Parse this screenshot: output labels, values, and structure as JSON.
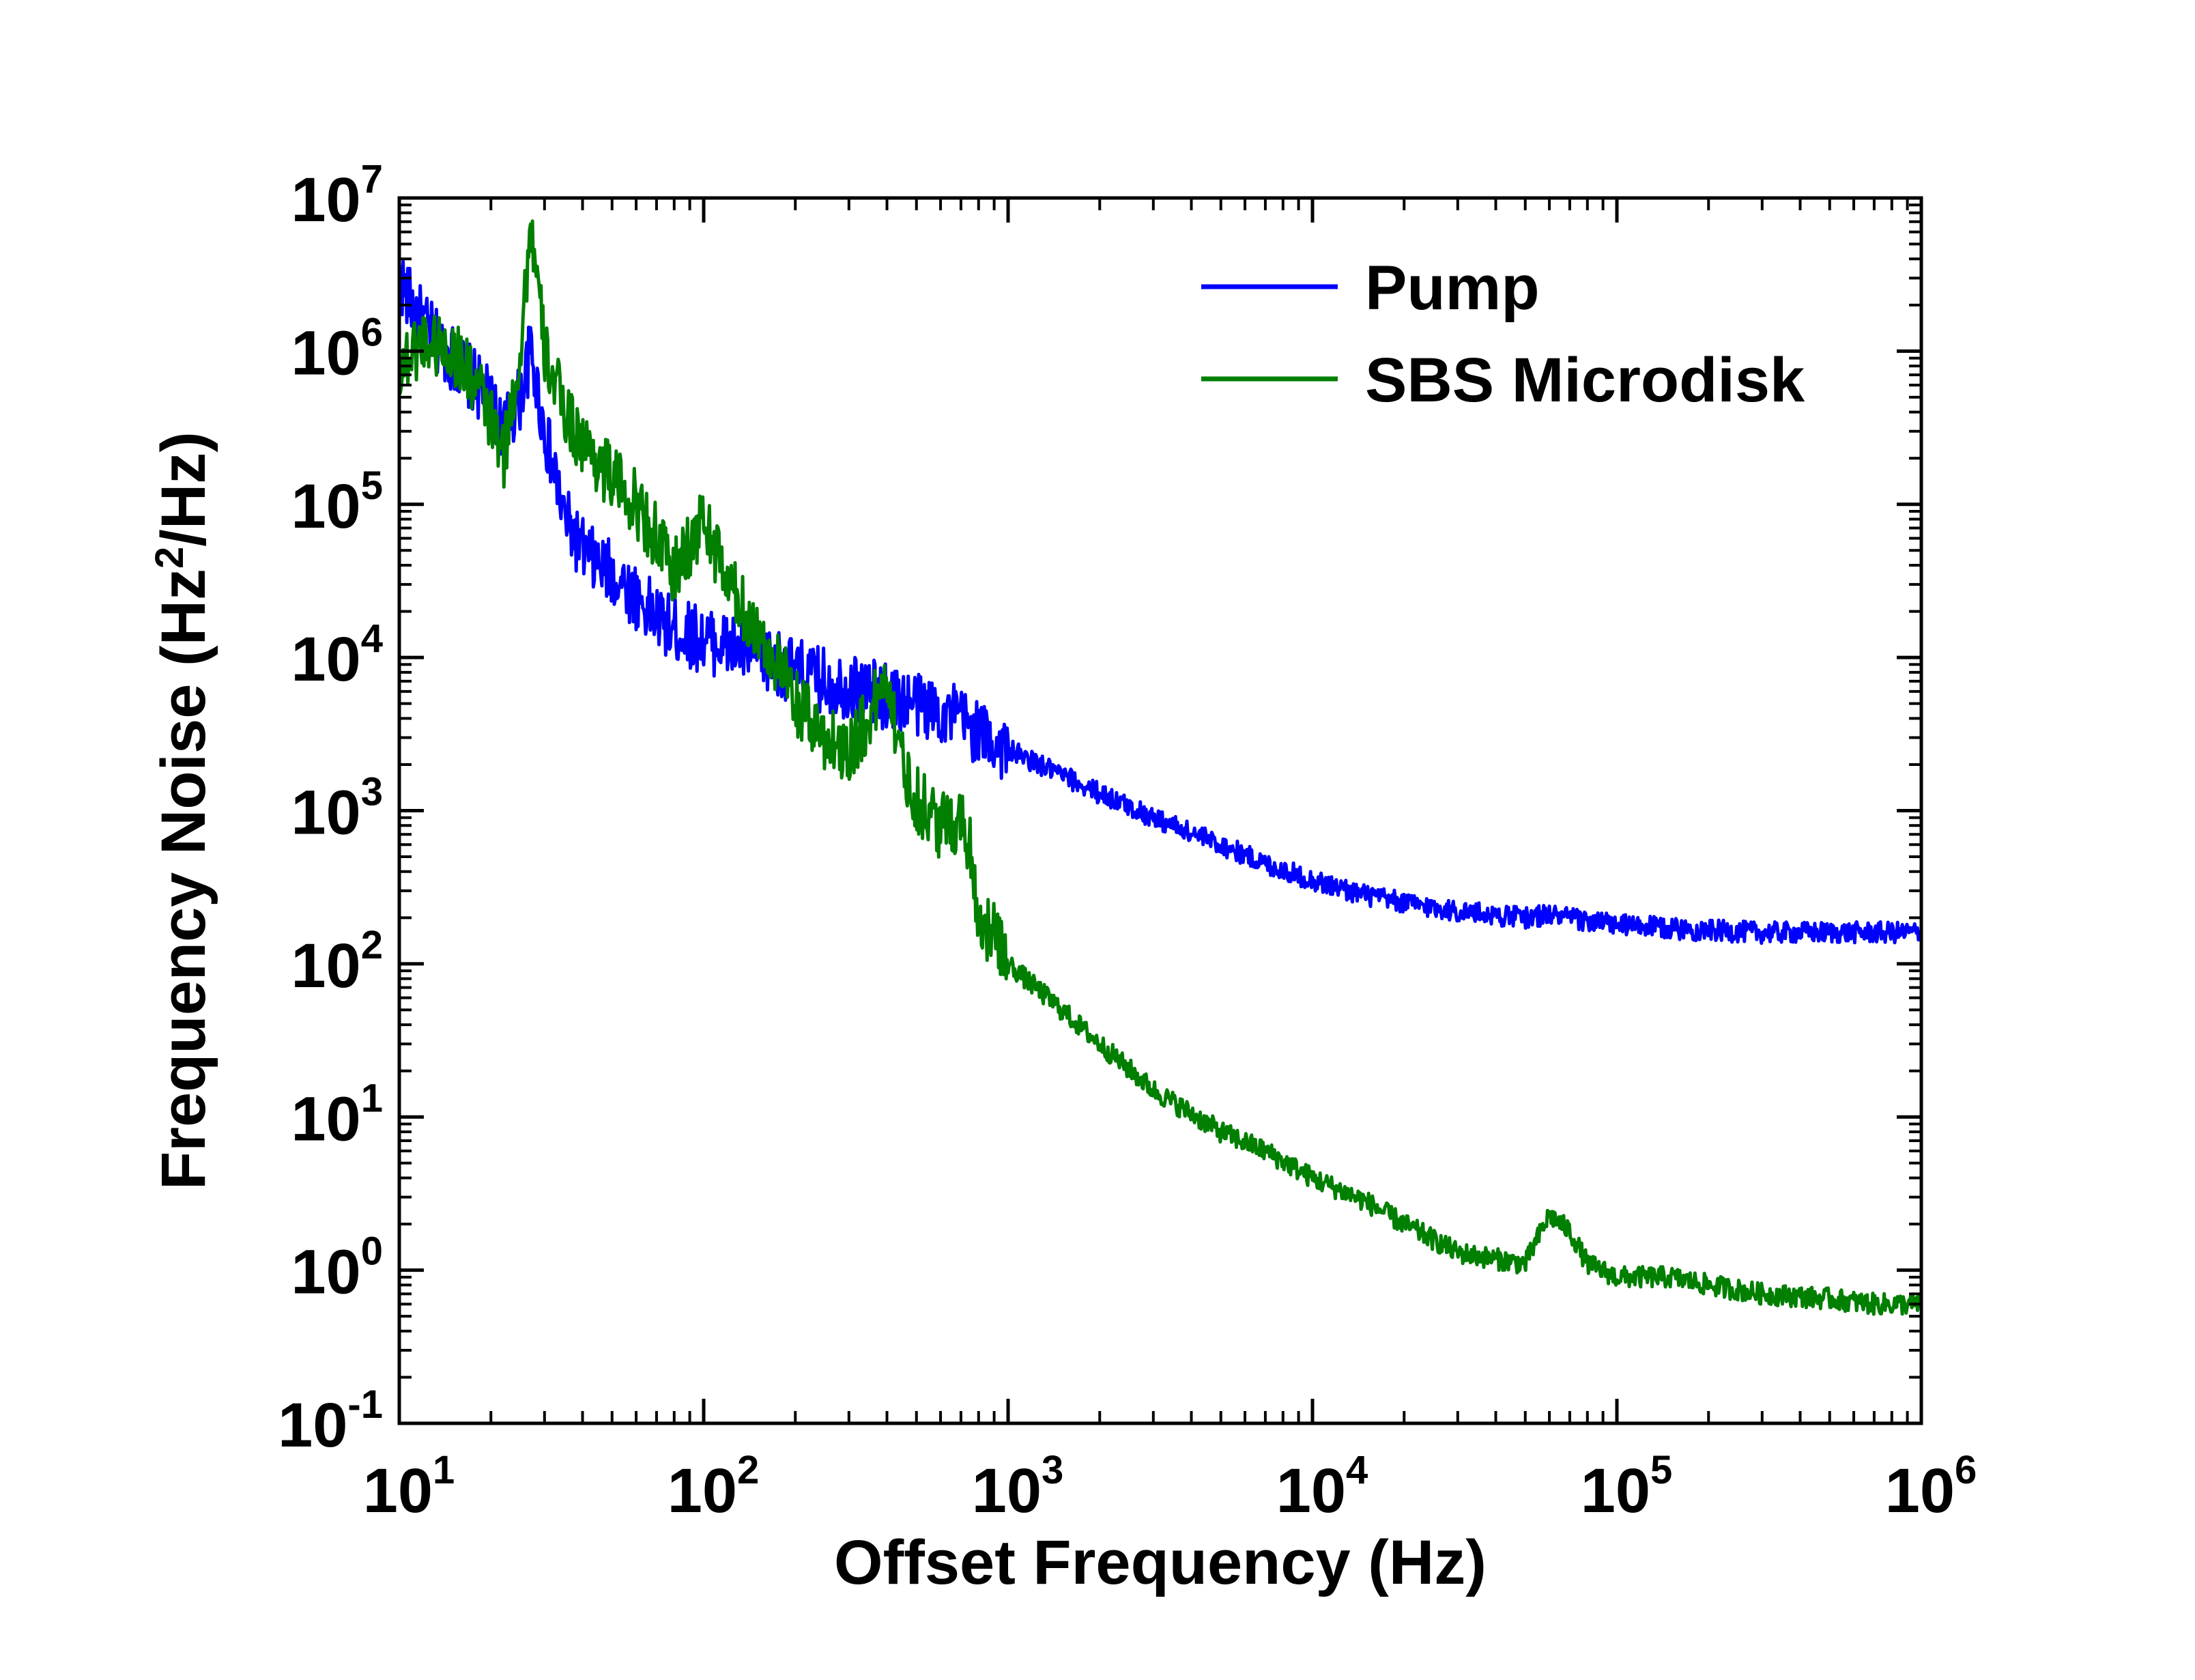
{
  "chart_data": {
    "type": "line",
    "title": "",
    "xlabel": "Offset Frequency (Hz)",
    "ylabel": {
      "prefix": "Frequency Noise (Hz",
      "sup": "2",
      "suffix": "/Hz)"
    },
    "xscale": "log",
    "yscale": "log",
    "xlim": [
      10,
      1000000
    ],
    "ylim": [
      0.1,
      10000000
    ],
    "x_ticks": [
      {
        "base": "10",
        "exp": "1"
      },
      {
        "base": "10",
        "exp": "2"
      },
      {
        "base": "10",
        "exp": "3"
      },
      {
        "base": "10",
        "exp": "4"
      },
      {
        "base": "10",
        "exp": "5"
      },
      {
        "base": "10",
        "exp": "6"
      }
    ],
    "y_ticks": [
      {
        "base": "10",
        "exp": "-1"
      },
      {
        "base": "10",
        "exp": "0"
      },
      {
        "base": "10",
        "exp": "1"
      },
      {
        "base": "10",
        "exp": "2"
      },
      {
        "base": "10",
        "exp": "3"
      },
      {
        "base": "10",
        "exp": "4"
      },
      {
        "base": "10",
        "exp": "5"
      },
      {
        "base": "10",
        "exp": "6"
      },
      {
        "base": "10",
        "exp": "7"
      }
    ],
    "grid": false,
    "legend_position": "top-right",
    "series": [
      {
        "name": "Pump",
        "color": "#0000ff",
        "x": [
          10,
          11,
          12,
          13,
          15,
          18,
          20,
          22,
          25,
          27,
          30,
          35,
          40,
          45,
          50,
          55,
          60,
          70,
          80,
          90,
          100,
          120,
          150,
          180,
          200,
          250,
          300,
          350,
          400,
          500,
          600,
          650,
          700,
          800,
          1000,
          1200,
          1500,
          2000,
          3000,
          5000,
          7000,
          10000,
          15000,
          20000,
          30000,
          50000,
          60000,
          80000,
          100000,
          150000,
          200000,
          300000,
          500000,
          700000,
          1000000
        ],
        "y": [
          3000000,
          2000000,
          1500000,
          1200000,
          900000,
          600000,
          450000,
          300000,
          500000,
          1000000,
          300000,
          80000,
          50000,
          40000,
          35000,
          30000,
          25000,
          18000,
          15000,
          14000,
          13000,
          12000,
          10000,
          9000,
          8000,
          7000,
          6500,
          6000,
          5500,
          5000,
          4500,
          4200,
          4000,
          3200,
          2500,
          2100,
          1700,
          1300,
          900,
          600,
          450,
          350,
          280,
          250,
          220,
          200,
          210,
          190,
          180,
          170,
          165,
          160,
          160,
          160,
          160
        ]
      },
      {
        "name": "SBS Microdisk",
        "color": "#007f00",
        "x": [
          10,
          12,
          15,
          18,
          20,
          22,
          25,
          27,
          30,
          35,
          40,
          50,
          60,
          70,
          80,
          100,
          120,
          150,
          180,
          200,
          250,
          300,
          350,
          400,
          450,
          500,
          600,
          700,
          750,
          800,
          900,
          1000,
          1500,
          2000,
          3000,
          5000,
          7000,
          10000,
          15000,
          20000,
          30000,
          50000,
          60000,
          70000,
          80000,
          100000,
          150000,
          200000,
          300000,
          500000,
          700000,
          1000000
        ],
        "y": [
          800000,
          1200000,
          1000000,
          600000,
          350000,
          200000,
          1000000,
          7000000,
          1000000,
          400000,
          250000,
          150000,
          100000,
          60000,
          35000,
          80000,
          30000,
          15000,
          8000,
          5000,
          3000,
          2500,
          4000,
          8000,
          2000,
          1200,
          800,
          900,
          600,
          200,
          150,
          100,
          50,
          30,
          15,
          8,
          6,
          4,
          2.8,
          2,
          1.3,
          1.1,
          2.3,
          1.8,
          1.1,
          0.9,
          0.9,
          0.8,
          0.7,
          0.65,
          0.6,
          0.6
        ]
      }
    ]
  }
}
